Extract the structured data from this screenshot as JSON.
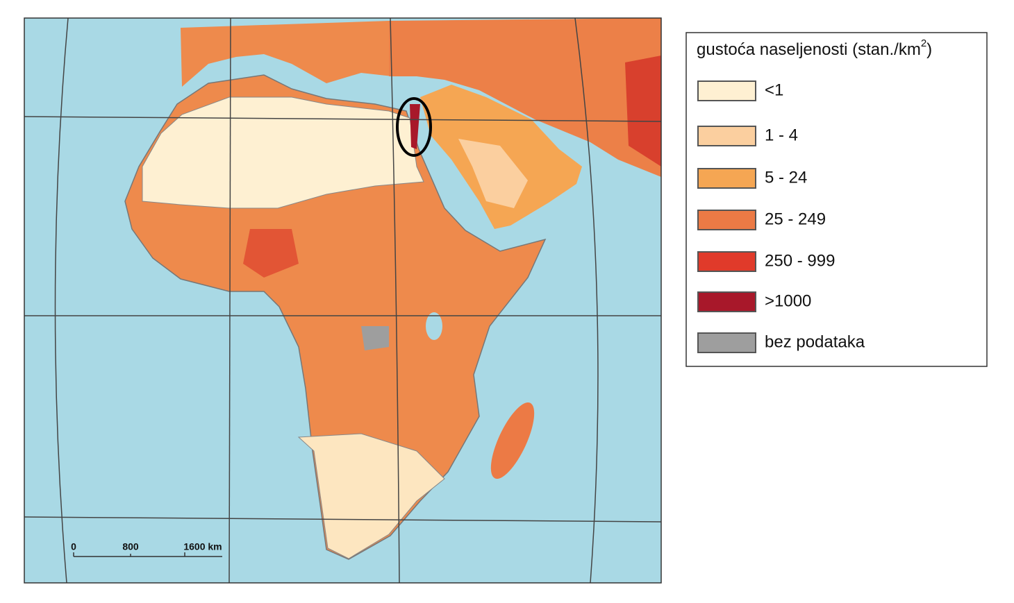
{
  "legend": {
    "title": "gustoća naseljenosti (stan./km",
    "title_superscript": "2",
    "title_end": ")",
    "items": [
      {
        "label": "<1",
        "color": "#fef0d2"
      },
      {
        "label": "1 - 4",
        "color": "#fbcf9f"
      },
      {
        "label": "5 - 24",
        "color": "#f5a653"
      },
      {
        "label": "25 - 249",
        "color": "#ec7a45"
      },
      {
        "label": "250 - 999",
        "color": "#e03a2a"
      },
      {
        "label": ">1000",
        "color": "#a8182a"
      },
      {
        "label": "bez podataka",
        "color": "#9e9e9e"
      }
    ]
  },
  "scale_bar": {
    "labels": [
      "0",
      "800",
      "1600 km"
    ]
  }
}
